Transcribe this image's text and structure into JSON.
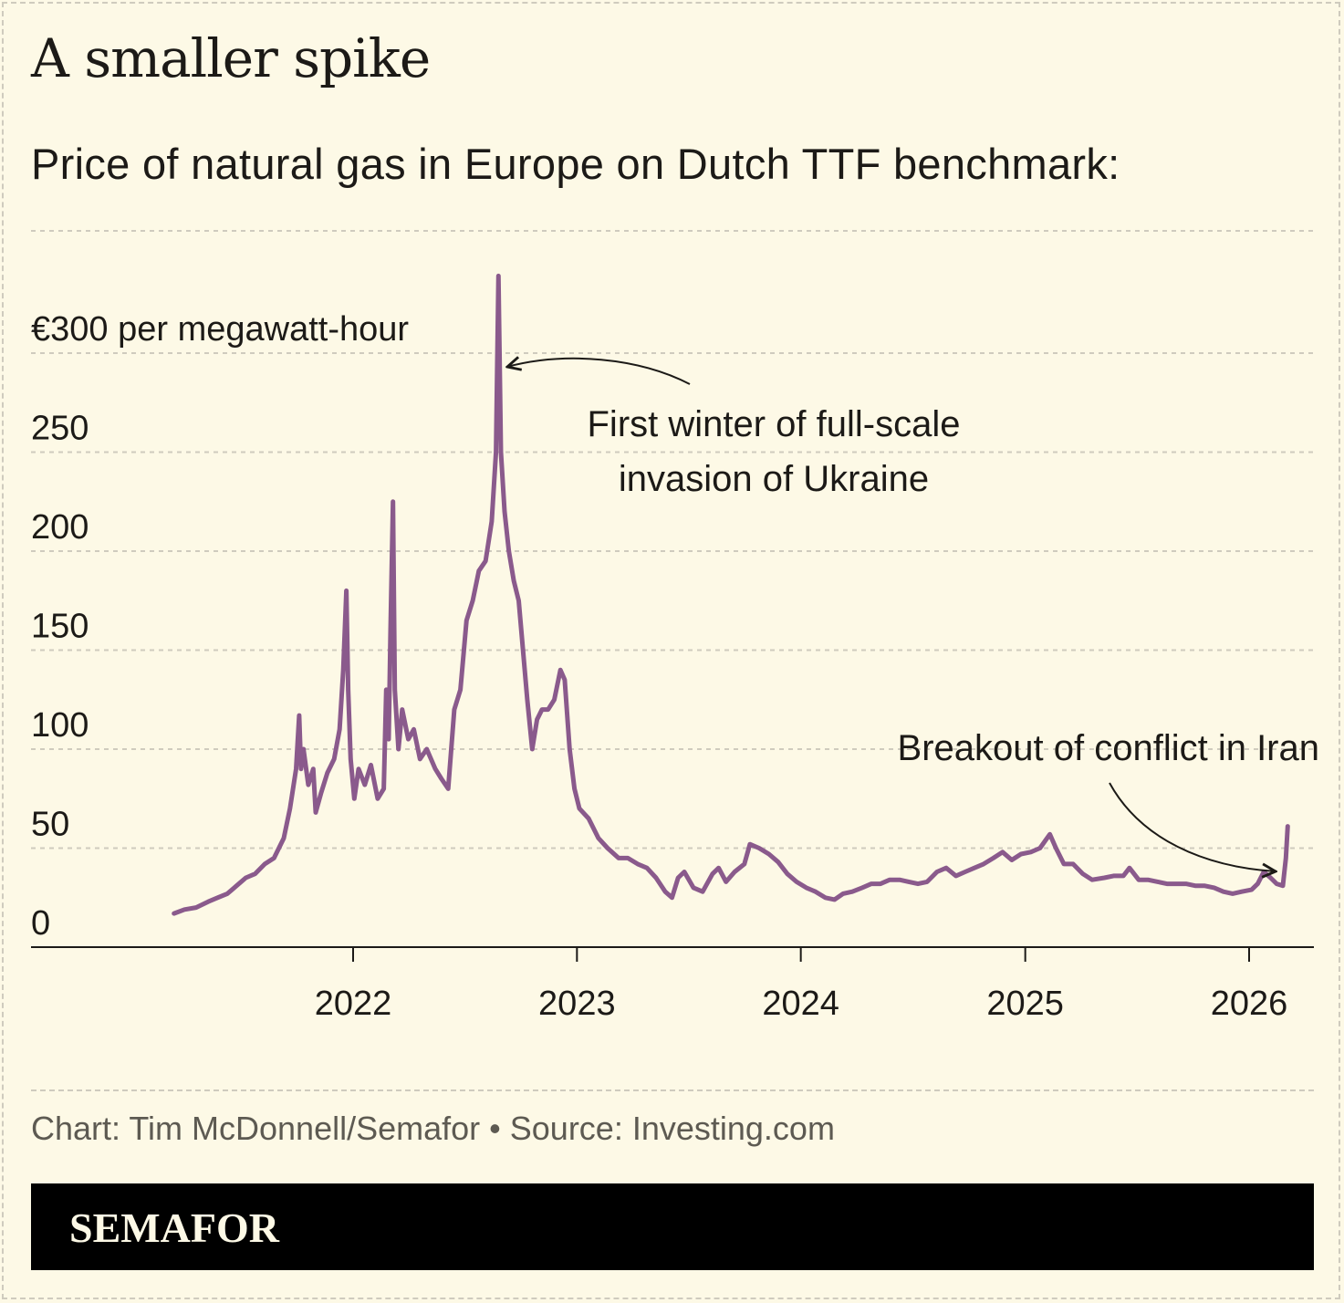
{
  "title": "A smaller spike",
  "subtitle": "Price of natural gas in Europe on Dutch TTF benchmark:",
  "credit": "Chart: Tim McDonnell/Semafor • Source: Investing.com",
  "brand": "SEMAFOR",
  "colors": {
    "background": "#fdf9e6",
    "line": "#8a5a8c",
    "grid": "#cfcbbe",
    "bar": "#000000"
  },
  "chart_data": {
    "type": "line",
    "ylabel": "€300 per megawatt-hour",
    "ylim": [
      0,
      300
    ],
    "xlim": [
      "2021-01-01",
      "2026-03-31"
    ],
    "yticks": [
      {
        "value": 300,
        "label": "€300 per megawatt-hour"
      },
      {
        "value": 250,
        "label": "250"
      },
      {
        "value": 200,
        "label": "200"
      },
      {
        "value": 150,
        "label": "150"
      },
      {
        "value": 100,
        "label": "100"
      },
      {
        "value": 50,
        "label": "50"
      },
      {
        "value": 0,
        "label": "0"
      }
    ],
    "xticks": [
      {
        "value": "2022-01-01",
        "label": "2022"
      },
      {
        "value": "2023-01-01",
        "label": "2023"
      },
      {
        "value": "2024-01-01",
        "label": "2024"
      },
      {
        "value": "2025-01-01",
        "label": "2025"
      },
      {
        "value": "2026-01-01",
        "label": "2026"
      }
    ],
    "grid": true,
    "annotations": [
      {
        "text_lines": [
          "First winter of full-scale",
          "invasion of Ukraine"
        ],
        "target_date": "2022-08-26",
        "target_value": 290
      },
      {
        "text_lines": [
          "Breakout of conflict in Iran"
        ],
        "target_date": "2026-02-27",
        "target_value": 36
      }
    ],
    "series": [
      {
        "points": [
          [
            "2021-03-15",
            17
          ],
          [
            "2021-04-01",
            19
          ],
          [
            "2021-04-20",
            20
          ],
          [
            "2021-05-10",
            23
          ],
          [
            "2021-05-25",
            25
          ],
          [
            "2021-06-10",
            27
          ],
          [
            "2021-06-25",
            31
          ],
          [
            "2021-07-10",
            35
          ],
          [
            "2021-07-25",
            37
          ],
          [
            "2021-08-10",
            42
          ],
          [
            "2021-08-25",
            45
          ],
          [
            "2021-09-10",
            55
          ],
          [
            "2021-09-20",
            70
          ],
          [
            "2021-09-30",
            90
          ],
          [
            "2021-10-05",
            117
          ],
          [
            "2021-10-08",
            90
          ],
          [
            "2021-10-12",
            100
          ],
          [
            "2021-10-20",
            82
          ],
          [
            "2021-10-28",
            90
          ],
          [
            "2021-11-01",
            68
          ],
          [
            "2021-11-10",
            78
          ],
          [
            "2021-11-20",
            88
          ],
          [
            "2021-12-01",
            95
          ],
          [
            "2021-12-10",
            110
          ],
          [
            "2021-12-16",
            140
          ],
          [
            "2021-12-21",
            180
          ],
          [
            "2021-12-24",
            130
          ],
          [
            "2021-12-28",
            95
          ],
          [
            "2022-01-03",
            75
          ],
          [
            "2022-01-10",
            90
          ],
          [
            "2022-01-20",
            82
          ],
          [
            "2022-01-30",
            92
          ],
          [
            "2022-02-10",
            75
          ],
          [
            "2022-02-20",
            80
          ],
          [
            "2022-02-24",
            130
          ],
          [
            "2022-02-28",
            105
          ],
          [
            "2022-03-03",
            160
          ],
          [
            "2022-03-07",
            225
          ],
          [
            "2022-03-10",
            130
          ],
          [
            "2022-03-16",
            100
          ],
          [
            "2022-03-22",
            120
          ],
          [
            "2022-04-01",
            105
          ],
          [
            "2022-04-10",
            110
          ],
          [
            "2022-04-20",
            95
          ],
          [
            "2022-05-01",
            100
          ],
          [
            "2022-05-15",
            90
          ],
          [
            "2022-05-25",
            85
          ],
          [
            "2022-06-05",
            80
          ],
          [
            "2022-06-15",
            120
          ],
          [
            "2022-06-25",
            130
          ],
          [
            "2022-07-05",
            165
          ],
          [
            "2022-07-15",
            175
          ],
          [
            "2022-07-25",
            190
          ],
          [
            "2022-08-05",
            195
          ],
          [
            "2022-08-15",
            215
          ],
          [
            "2022-08-22",
            250
          ],
          [
            "2022-08-26",
            339
          ],
          [
            "2022-08-30",
            250
          ],
          [
            "2022-09-05",
            220
          ],
          [
            "2022-09-12",
            200
          ],
          [
            "2022-09-20",
            185
          ],
          [
            "2022-09-28",
            175
          ],
          [
            "2022-10-05",
            150
          ],
          [
            "2022-10-12",
            125
          ],
          [
            "2022-10-20",
            100
          ],
          [
            "2022-10-28",
            115
          ],
          [
            "2022-11-05",
            120
          ],
          [
            "2022-11-15",
            120
          ],
          [
            "2022-11-25",
            125
          ],
          [
            "2022-12-05",
            140
          ],
          [
            "2022-12-12",
            135
          ],
          [
            "2022-12-20",
            100
          ],
          [
            "2022-12-28",
            80
          ],
          [
            "2023-01-05",
            70
          ],
          [
            "2023-01-20",
            65
          ],
          [
            "2023-02-05",
            55
          ],
          [
            "2023-02-20",
            50
          ],
          [
            "2023-03-10",
            45
          ],
          [
            "2023-03-25",
            45
          ],
          [
            "2023-04-10",
            42
          ],
          [
            "2023-04-25",
            40
          ],
          [
            "2023-05-10",
            35
          ],
          [
            "2023-05-25",
            28
          ],
          [
            "2023-06-05",
            25
          ],
          [
            "2023-06-15",
            35
          ],
          [
            "2023-06-25",
            38
          ],
          [
            "2023-07-10",
            30
          ],
          [
            "2023-07-25",
            28
          ],
          [
            "2023-08-10",
            37
          ],
          [
            "2023-08-20",
            40
          ],
          [
            "2023-09-01",
            33
          ],
          [
            "2023-09-15",
            38
          ],
          [
            "2023-10-01",
            42
          ],
          [
            "2023-10-10",
            52
          ],
          [
            "2023-10-25",
            50
          ],
          [
            "2023-11-10",
            47
          ],
          [
            "2023-11-25",
            43
          ],
          [
            "2023-12-10",
            37
          ],
          [
            "2023-12-25",
            33
          ],
          [
            "2024-01-10",
            30
          ],
          [
            "2024-01-25",
            28
          ],
          [
            "2024-02-10",
            25
          ],
          [
            "2024-02-25",
            24
          ],
          [
            "2024-03-10",
            27
          ],
          [
            "2024-03-25",
            28
          ],
          [
            "2024-04-10",
            30
          ],
          [
            "2024-04-25",
            32
          ],
          [
            "2024-05-10",
            32
          ],
          [
            "2024-05-25",
            34
          ],
          [
            "2024-06-10",
            34
          ],
          [
            "2024-06-25",
            33
          ],
          [
            "2024-07-10",
            32
          ],
          [
            "2024-07-25",
            33
          ],
          [
            "2024-08-10",
            38
          ],
          [
            "2024-08-25",
            40
          ],
          [
            "2024-09-10",
            36
          ],
          [
            "2024-09-25",
            38
          ],
          [
            "2024-10-10",
            40
          ],
          [
            "2024-10-25",
            42
          ],
          [
            "2024-11-10",
            45
          ],
          [
            "2024-11-25",
            48
          ],
          [
            "2024-12-10",
            44
          ],
          [
            "2024-12-25",
            47
          ],
          [
            "2025-01-10",
            48
          ],
          [
            "2025-01-25",
            50
          ],
          [
            "2025-02-10",
            57
          ],
          [
            "2025-02-20",
            50
          ],
          [
            "2025-03-05",
            42
          ],
          [
            "2025-03-20",
            42
          ],
          [
            "2025-04-05",
            37
          ],
          [
            "2025-04-20",
            34
          ],
          [
            "2025-05-10",
            35
          ],
          [
            "2025-05-25",
            36
          ],
          [
            "2025-06-10",
            36
          ],
          [
            "2025-06-20",
            40
          ],
          [
            "2025-07-05",
            34
          ],
          [
            "2025-07-20",
            34
          ],
          [
            "2025-08-05",
            33
          ],
          [
            "2025-08-20",
            32
          ],
          [
            "2025-09-05",
            32
          ],
          [
            "2025-09-20",
            32
          ],
          [
            "2025-10-05",
            31
          ],
          [
            "2025-10-20",
            31
          ],
          [
            "2025-11-05",
            30
          ],
          [
            "2025-11-20",
            28
          ],
          [
            "2025-12-05",
            27
          ],
          [
            "2025-12-20",
            28
          ],
          [
            "2026-01-05",
            29
          ],
          [
            "2026-01-15",
            32
          ],
          [
            "2026-01-25",
            38
          ],
          [
            "2026-02-05",
            35
          ],
          [
            "2026-02-15",
            32
          ],
          [
            "2026-02-25",
            31
          ],
          [
            "2026-03-02",
            45
          ],
          [
            "2026-03-05",
            61
          ]
        ]
      }
    ]
  }
}
